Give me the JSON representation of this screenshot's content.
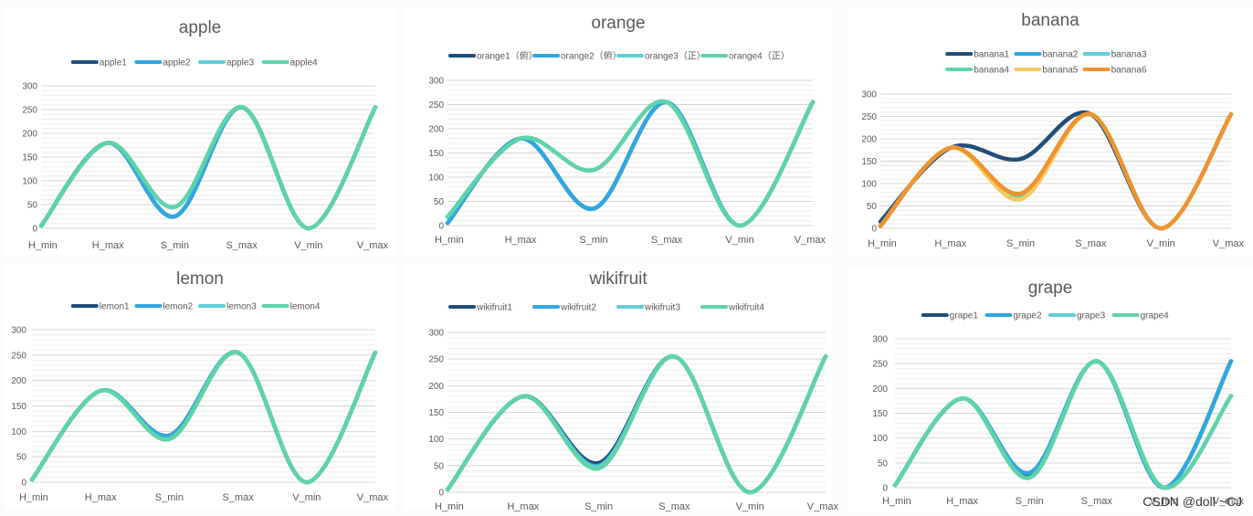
{
  "watermark": "CSDN @doll ~CJ",
  "colors": {
    "dark_blue": "#1f4e79",
    "blue": "#2fa7e0",
    "cyan": "#5ccfd9",
    "teal": "#5fd3a8",
    "yellow": "#f7c95f",
    "orange": "#f0922e",
    "grid": "#d9d9d9",
    "text": "#595959"
  },
  "chart_data": [
    {
      "type": "line",
      "title": "apple",
      "categories": [
        "H_min",
        "H_max",
        "S_min",
        "S_max",
        "V_min",
        "V_max"
      ],
      "ylim": [
        0,
        300
      ],
      "yticks": [
        0,
        50,
        100,
        150,
        200,
        250,
        300
      ],
      "grid": true,
      "legend": "top",
      "smooth": true,
      "series": [
        {
          "name": "apple1",
          "color": "#1f4e79",
          "values": [
            5,
            180,
            25,
            255,
            0,
            255
          ]
        },
        {
          "name": "apple2",
          "color": "#2fa7e0",
          "values": [
            5,
            180,
            25,
            255,
            0,
            255
          ]
        },
        {
          "name": "apple3",
          "color": "#5ccfd9",
          "values": [
            5,
            180,
            45,
            255,
            0,
            255
          ]
        },
        {
          "name": "apple4",
          "color": "#5fd3a8",
          "values": [
            5,
            180,
            45,
            255,
            0,
            255
          ]
        }
      ]
    },
    {
      "type": "line",
      "title": "orange",
      "categories": [
        "H_min",
        "H_max",
        "S_min",
        "S_max",
        "V_min",
        "V_max"
      ],
      "ylim": [
        0,
        300
      ],
      "yticks": [
        0,
        50,
        100,
        150,
        200,
        250,
        300
      ],
      "grid": true,
      "legend": "top",
      "smooth": true,
      "series": [
        {
          "name": "orange1（俯）",
          "color": "#1f4e79",
          "values": [
            5,
            180,
            35,
            255,
            0,
            255
          ]
        },
        {
          "name": "orange2（俯）",
          "color": "#2fa7e0",
          "values": [
            5,
            180,
            35,
            255,
            0,
            255
          ]
        },
        {
          "name": "orange3（正）",
          "color": "#5ccfd9",
          "values": [
            18,
            180,
            115,
            255,
            0,
            255
          ]
        },
        {
          "name": "orange4（正）",
          "color": "#5fd3a8",
          "values": [
            18,
            180,
            115,
            255,
            0,
            255
          ]
        }
      ]
    },
    {
      "type": "line",
      "title": "banana",
      "categories": [
        "H_min",
        "H_max",
        "S_min",
        "S_max",
        "V_min",
        "V_max"
      ],
      "ylim": [
        0,
        300
      ],
      "yticks": [
        0,
        50,
        100,
        150,
        200,
        250,
        300
      ],
      "grid": true,
      "legend": "top",
      "smooth": true,
      "series": [
        {
          "name": "banana1",
          "color": "#1f4e79",
          "values": [
            15,
            180,
            155,
            255,
            0,
            255
          ]
        },
        {
          "name": "banana2",
          "color": "#2fa7e0",
          "values": [
            5,
            180,
            75,
            255,
            0,
            255
          ]
        },
        {
          "name": "banana3",
          "color": "#5ccfd9",
          "values": [
            5,
            180,
            70,
            255,
            0,
            255
          ]
        },
        {
          "name": "banana4",
          "color": "#5fd3a8",
          "values": [
            5,
            180,
            70,
            255,
            0,
            255
          ]
        },
        {
          "name": "banana5",
          "color": "#f7c95f",
          "values": [
            5,
            180,
            65,
            255,
            0,
            255
          ]
        },
        {
          "name": "banana6",
          "color": "#f0922e",
          "values": [
            5,
            180,
            78,
            255,
            0,
            255
          ]
        }
      ]
    },
    {
      "type": "line",
      "title": "lemon",
      "categories": [
        "H_min",
        "H_max",
        "S_min",
        "S_max",
        "V_min",
        "V_max"
      ],
      "ylim": [
        0,
        300
      ],
      "yticks": [
        0,
        50,
        100,
        150,
        200,
        250,
        300
      ],
      "grid": true,
      "legend": "top",
      "smooth": true,
      "series": [
        {
          "name": "lemon1",
          "color": "#1f4e79",
          "values": [
            5,
            180,
            92,
            255,
            0,
            255
          ]
        },
        {
          "name": "lemon2",
          "color": "#2fa7e0",
          "values": [
            5,
            180,
            92,
            255,
            0,
            255
          ]
        },
        {
          "name": "lemon3",
          "color": "#5ccfd9",
          "values": [
            5,
            180,
            85,
            255,
            0,
            255
          ]
        },
        {
          "name": "lemon4",
          "color": "#5fd3a8",
          "values": [
            5,
            180,
            85,
            255,
            0,
            255
          ]
        }
      ]
    },
    {
      "type": "line",
      "title": "wikifruit",
      "categories": [
        "H_min",
        "H_max",
        "S_min",
        "S_max",
        "V_min",
        "V_max"
      ],
      "ylim": [
        0,
        300
      ],
      "yticks": [
        0,
        50,
        100,
        150,
        200,
        250,
        300
      ],
      "grid": true,
      "legend": "top",
      "smooth": true,
      "series": [
        {
          "name": "wikifruit1",
          "color": "#1f4e79",
          "values": [
            5,
            180,
            55,
            255,
            0,
            255
          ]
        },
        {
          "name": "wikifruit2",
          "color": "#2fa7e0",
          "values": [
            5,
            180,
            50,
            255,
            0,
            255
          ]
        },
        {
          "name": "wikifruit3",
          "color": "#5ccfd9",
          "values": [
            5,
            180,
            48,
            255,
            0,
            255
          ]
        },
        {
          "name": "wikifruit4",
          "color": "#5fd3a8",
          "values": [
            5,
            180,
            45,
            255,
            0,
            255
          ]
        }
      ]
    },
    {
      "type": "line",
      "title": "grape",
      "categories": [
        "H_min",
        "H_max",
        "S_min",
        "S_max",
        "V_min",
        "V_max"
      ],
      "ylim": [
        0,
        300
      ],
      "yticks": [
        0,
        50,
        100,
        150,
        200,
        250,
        300
      ],
      "grid": true,
      "legend": "top",
      "smooth": true,
      "series": [
        {
          "name": "grape1",
          "color": "#1f4e79",
          "values": [
            5,
            180,
            25,
            255,
            0,
            255
          ]
        },
        {
          "name": "grape2",
          "color": "#2fa7e0",
          "values": [
            5,
            180,
            30,
            255,
            0,
            255
          ]
        },
        {
          "name": "grape3",
          "color": "#5ccfd9",
          "values": [
            5,
            180,
            20,
            255,
            0,
            185
          ]
        },
        {
          "name": "grape4",
          "color": "#5fd3a8",
          "values": [
            5,
            180,
            20,
            255,
            0,
            185
          ]
        }
      ]
    }
  ]
}
